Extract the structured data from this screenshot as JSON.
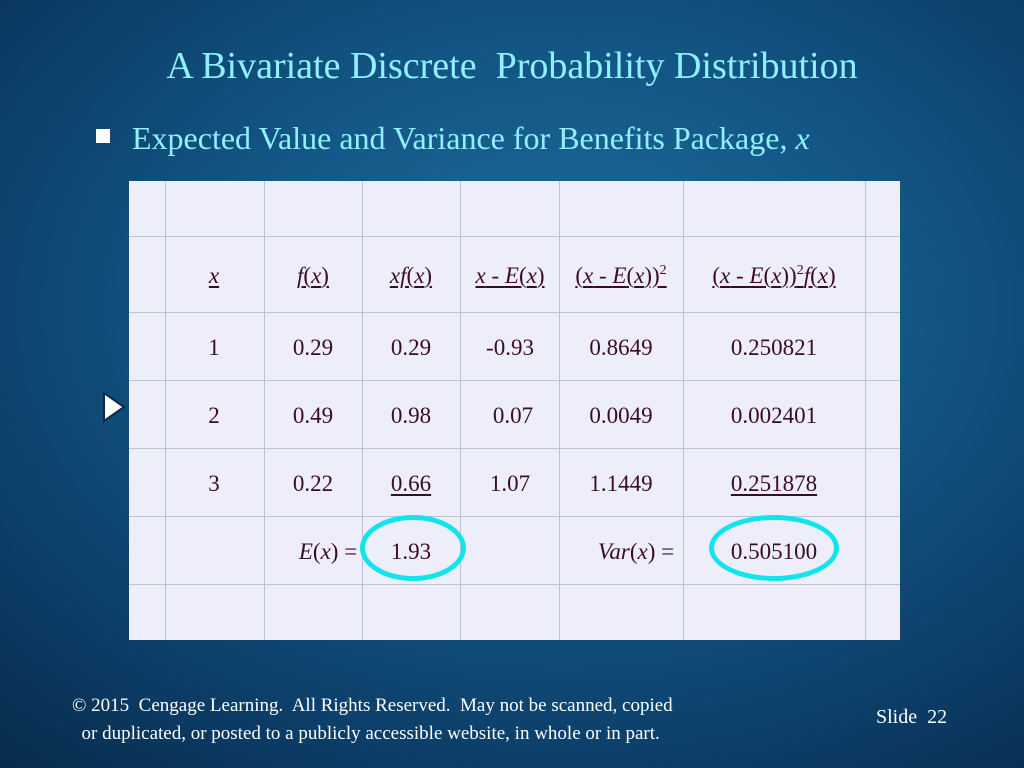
{
  "slide": {
    "title": "A Bivariate Discrete  Probability Distribution",
    "bullet": "Expected Value and Variance for Benefits Package, ",
    "bullet_var": "x"
  },
  "table": {
    "rows": [
      {
        "x": "1",
        "fx": "0.29",
        "xfx": "0.29",
        "dev": "-0.93",
        "dev_sq": "0.8649",
        "dev_sq_fx": "0.250821"
      },
      {
        "x": "2",
        "fx": "0.49",
        "xfx": "0.98",
        "dev": "0.07",
        "dev_sq": "0.0049",
        "dev_sq_fx": "0.002401"
      },
      {
        "x": "3",
        "fx": "0.22",
        "xfx": "0.66",
        "dev": "1.07",
        "dev_sq": "1.1449",
        "dev_sq_fx": "0.251878"
      }
    ],
    "expected_value": "1.93",
    "variance": "0.505100"
  },
  "footer": {
    "copyright_line1": "© 2015  Cengage Learning.  All Rights Reserved.  May not be scanned, copied",
    "copyright_line2": "  or duplicated, or posted to a publicly accessible website, in whole or in part.",
    "slide_label": "Slide  22"
  },
  "colors": {
    "title": "#8ff0ff",
    "table_bg": "#eeeefb",
    "table_text": "#3a0a2e",
    "highlight_ring": "#10e4ec"
  },
  "icons": {
    "bullet": "square-bullet-icon",
    "nav": "play-arrow-icon"
  }
}
